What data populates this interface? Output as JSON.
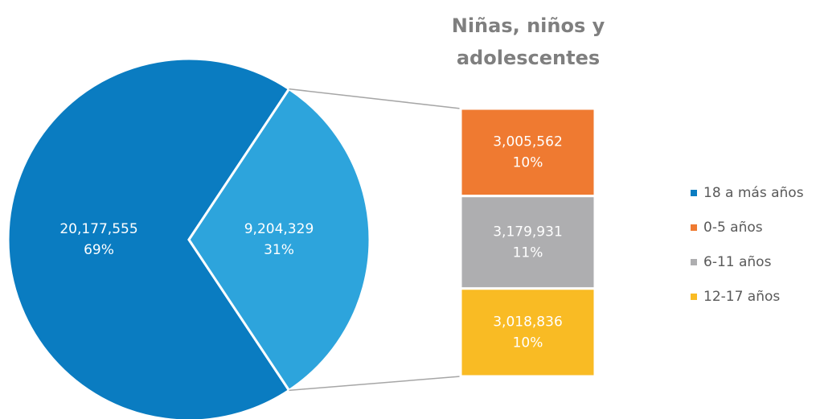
{
  "chart_data": {
    "type": "pie",
    "categories": [
      "18 a más años",
      "Niñas, niños y adolescentes"
    ],
    "values": [
      20177555,
      9204329
    ],
    "value_labels": [
      "20,177,555",
      "9,204,329"
    ],
    "percent_labels": [
      "69%",
      "31%"
    ],
    "colors": [
      "#0a7cc1",
      "#2da4dc"
    ],
    "legend": "right",
    "breakdown": {
      "type": "bar",
      "categories": [
        "0-5 años",
        "6-11 años",
        "12-17 años"
      ],
      "values": [
        3005562,
        3179931,
        3018836
      ],
      "value_labels": [
        "3,005,562",
        "3,179,931",
        "3,018,836"
      ],
      "percent_labels": [
        "10%",
        "11%",
        "10%"
      ],
      "colors": [
        "#ef7a31",
        "#aeaeb0",
        "#f9bb24"
      ]
    }
  }
}
